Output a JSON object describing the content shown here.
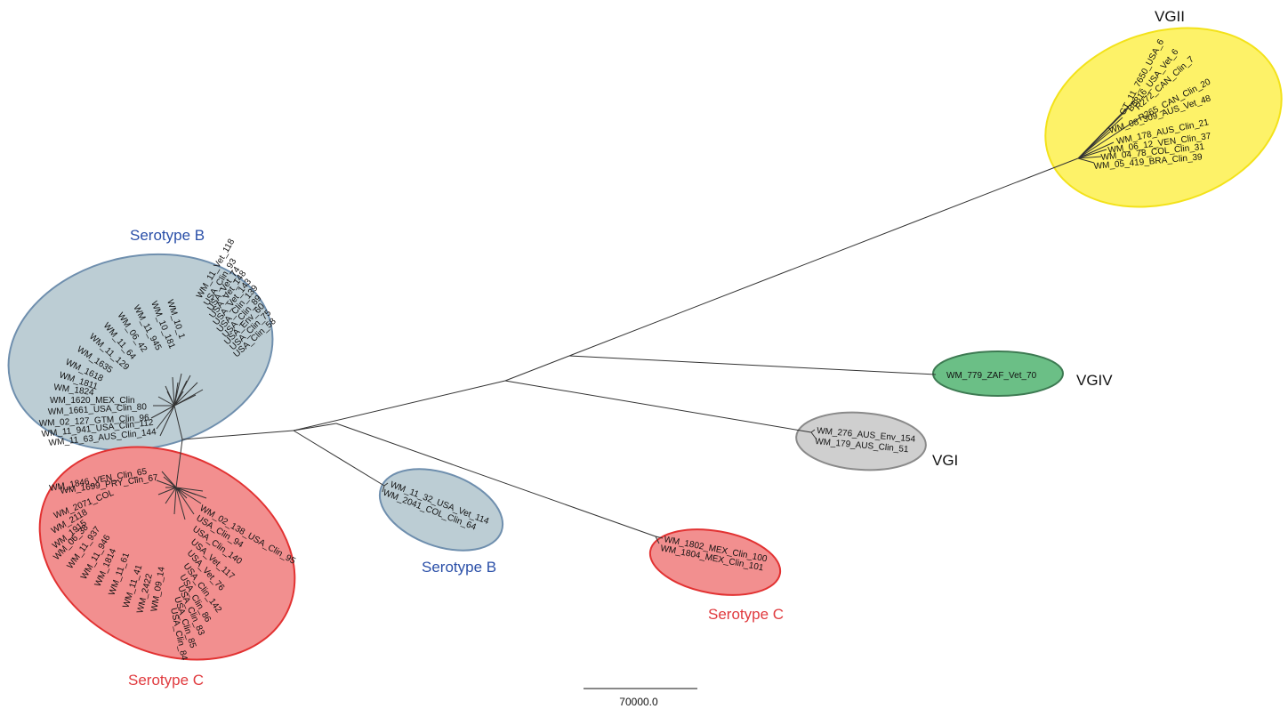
{
  "figure": {
    "clades": {
      "vgii": {
        "label": "VGII",
        "label_color": "#111111",
        "fill": "#fdf268",
        "stroke": "#f3e21a",
        "leaves": [
          "GT_11_7650_USA_6",
          "B8816_USA_Vet_6",
          "R272_CAN_Clin_7",
          "R265_CAN_Clin_20",
          "WM_08_309_AUS_Vet_48",
          "WM_178_AUS_Clin_21",
          "WM_06_12_VEN_Clin_37",
          "WM_04_78_COL_Clin_31",
          "WM_05_419_BRA_Clin_39"
        ]
      },
      "vgiv": {
        "label": "VGIV",
        "label_color": "#111111",
        "fill": "#6bbf86",
        "stroke": "#3d7a52",
        "leaves": [
          "WM_779_ZAF_Vet_70"
        ]
      },
      "vgi": {
        "label": "VGI",
        "label_color": "#111111",
        "fill": "#cfcfcf",
        "stroke": "#8a8a8a",
        "leaves": [
          "WM_276_AUS_Env_154",
          "WM_179_AUS_Clin_51"
        ]
      },
      "serotype_b_small": {
        "label": "Serotype B",
        "label_color": "#2a4fa8",
        "fill": "#bccdd4",
        "stroke": "#6f8fae",
        "leaves": [
          "WM_11_32_USA_Vet_114",
          "WM_2041_COL_Clin_64"
        ]
      },
      "serotype_c_small": {
        "label": "Serotype C",
        "label_color": "#e03a3e",
        "fill": "#f28f8f",
        "stroke": "#e23232",
        "leaves": [
          "WM_1802_MEX_Clin_100",
          "WM_1804_MEX_Clin_101"
        ]
      },
      "serotype_b_large": {
        "label": "Serotype B",
        "label_color": "#2a4fa8",
        "fill": "#bccdd4",
        "stroke": "#6f8fae",
        "leaves": [
          "WM_11_63_AUS_Clin_144",
          "WM_11_941_USA_Clin_112",
          "WM_02_127_GTM_Clin_96",
          "WM_1661_USA_Clin_80",
          "WM_1620_MEX_Clin",
          "WM_1824",
          "WM_1811",
          "WM_1618",
          "WM_1635",
          "WM_11_129",
          "WM_11_64",
          "WM_06_42",
          "WM_11_945",
          "WM_10_181",
          "WM_10_1",
          "WM_11_Vet_118",
          "USA_Clin_93",
          "USA_Vet_74",
          "USA_Vet_148",
          "USA_Vet_143",
          "USA_Clin_139",
          "USA_Clin_89",
          "USA_Env_60",
          "USA_Clin_75",
          "USA_Clin_58"
        ]
      },
      "serotype_c_large": {
        "label": "Serotype C",
        "label_color": "#e03a3e",
        "fill": "#f28f8f",
        "stroke": "#e23232",
        "leaves": [
          "WM_1699_PRY_Clin_67",
          "WM_1846_VEN_Clin_65",
          "WM_2071_COL",
          "WM_2118",
          "WM_1915",
          "WM_06_38",
          "WM_11_937",
          "WM_11_946",
          "WM_1814",
          "WM_11_61",
          "WM_11_41",
          "WM_2422",
          "WM_09_14",
          "WM_02_138_USA_Clin_95",
          "USA_Clin_94",
          "USA_Clin_140",
          "USA_Vet_117",
          "USA_Vet_76",
          "USA_Clin_142",
          "USA_Clin_86",
          "USA_Clin_83",
          "USA_Clin_85",
          "USA_Clin_84"
        ]
      }
    },
    "scale_bar": {
      "label": "70000.0"
    }
  }
}
